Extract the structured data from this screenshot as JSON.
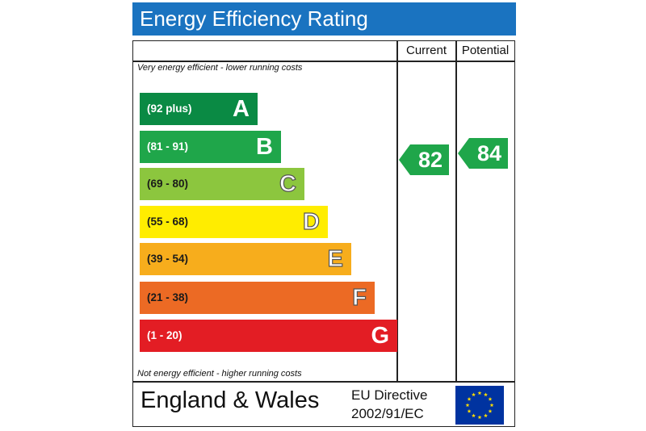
{
  "title": "Energy Efficiency Rating",
  "columns": {
    "current": "Current",
    "potential": "Potential"
  },
  "notes": {
    "top": "Very energy efficient - lower running costs",
    "bottom": "Not energy efficient - higher running costs"
  },
  "bands": [
    {
      "range": "(92 plus)",
      "letter": "A",
      "color": "#0a8a44",
      "text_color": "#ffffff"
    },
    {
      "range": "(81 - 91)",
      "letter": "B",
      "color": "#1fa64a",
      "text_color": "#ffffff"
    },
    {
      "range": "(69 - 80)",
      "letter": "C",
      "color": "#8cc63e",
      "text_color": "#1a1a1a"
    },
    {
      "range": "(55 - 68)",
      "letter": "D",
      "color": "#ffed00",
      "text_color": "#1a1a1a"
    },
    {
      "range": "(39 - 54)",
      "letter": "E",
      "color": "#f7ad1c",
      "text_color": "#1a1a1a"
    },
    {
      "range": "(21 - 38)",
      "letter": "F",
      "color": "#ec6a24",
      "text_color": "#1a1a1a"
    },
    {
      "range": "(1 - 20)",
      "letter": "G",
      "color": "#e31d24",
      "text_color": "#ffffff"
    }
  ],
  "ratings": {
    "current": {
      "value": "82",
      "color": "#1fa64a"
    },
    "potential": {
      "value": "84",
      "color": "#1fa64a"
    }
  },
  "footer": {
    "country": "England & Wales",
    "directive_line1": "EU Directive",
    "directive_line2": "2002/91/EC",
    "flag_icon": "eu-flag-icon",
    "flag_color": "#0033a0",
    "star_color": "#ffdd00"
  },
  "colors": {
    "title_bar": "#1a73c0"
  }
}
